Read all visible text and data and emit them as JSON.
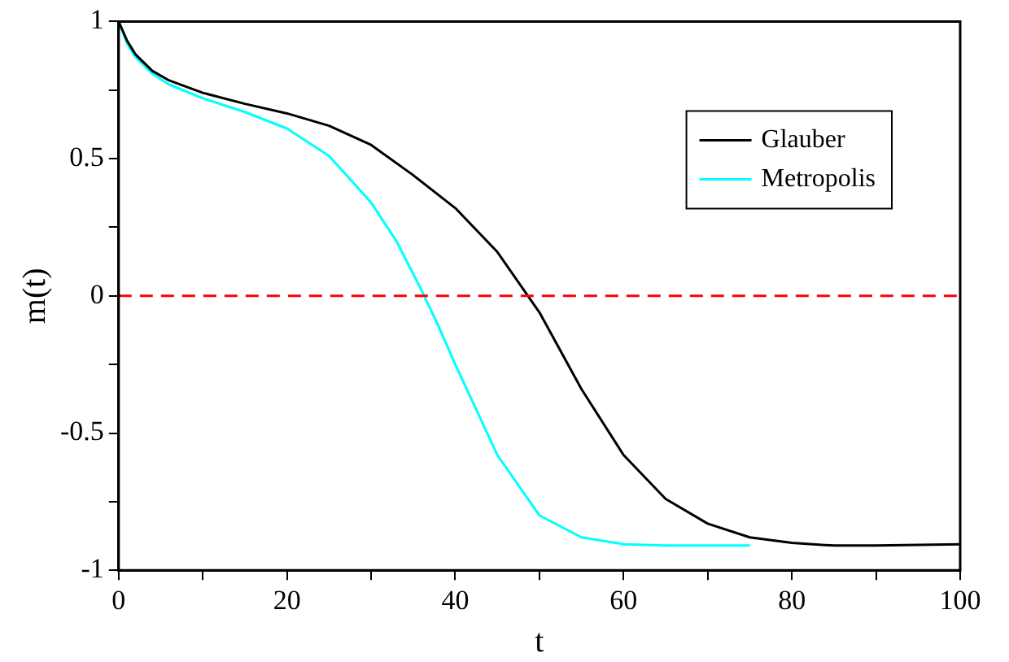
{
  "chart_data": {
    "type": "line",
    "xlabel": "t",
    "ylabel": "m(t)",
    "xlim": [
      0,
      100
    ],
    "ylim": [
      -1,
      1
    ],
    "xticks": [
      0,
      {
        "value": 10,
        "label": null
      },
      20,
      {
        "value": 30,
        "label": null
      },
      40,
      {
        "value": 50,
        "label": null
      },
      60,
      {
        "value": 70,
        "label": null
      },
      80,
      {
        "value": 90,
        "label": null
      },
      100
    ],
    "yticks": [
      -1,
      {
        "value": -0.75,
        "label": null
      },
      -0.5,
      {
        "value": -0.25,
        "label": null
      },
      0,
      {
        "value": 0.25,
        "label": null
      },
      0.5,
      {
        "value": 0.75,
        "label": null
      },
      1
    ],
    "grid": false,
    "legend": "top right",
    "marker": "none",
    "line_style": "solid",
    "ref_lines": [
      {
        "axis": "y",
        "value": 0,
        "color": "#ff0000",
        "line_style": "dashed"
      }
    ],
    "series": [
      {
        "name": "Glauber",
        "color": "#000000",
        "x": [
          0,
          1,
          2,
          4,
          6,
          10,
          15,
          20,
          25,
          30,
          35,
          40,
          45,
          50,
          55,
          60,
          65,
          70,
          75,
          80,
          85,
          90,
          100
        ],
        "values": [
          1,
          0.93,
          0.88,
          0.82,
          0.785,
          0.74,
          0.7,
          0.665,
          0.62,
          0.55,
          0.44,
          0.32,
          0.16,
          -0.06,
          -0.34,
          -0.58,
          -0.74,
          -0.83,
          -0.88,
          -0.9,
          -0.91,
          -0.91,
          -0.905
        ]
      },
      {
        "name": "Metropolis",
        "color": "#00ffff",
        "x": [
          0,
          1,
          2,
          4,
          6,
          10,
          15,
          20,
          25,
          30,
          33,
          36,
          38,
          40,
          45,
          50,
          55,
          60,
          65,
          75
        ],
        "values": [
          1,
          0.92,
          0.87,
          0.81,
          0.77,
          0.72,
          0.67,
          0.61,
          0.51,
          0.34,
          0.2,
          0.02,
          -0.11,
          -0.25,
          -0.58,
          -0.8,
          -0.88,
          -0.905,
          -0.91,
          -0.91
        ]
      }
    ]
  }
}
